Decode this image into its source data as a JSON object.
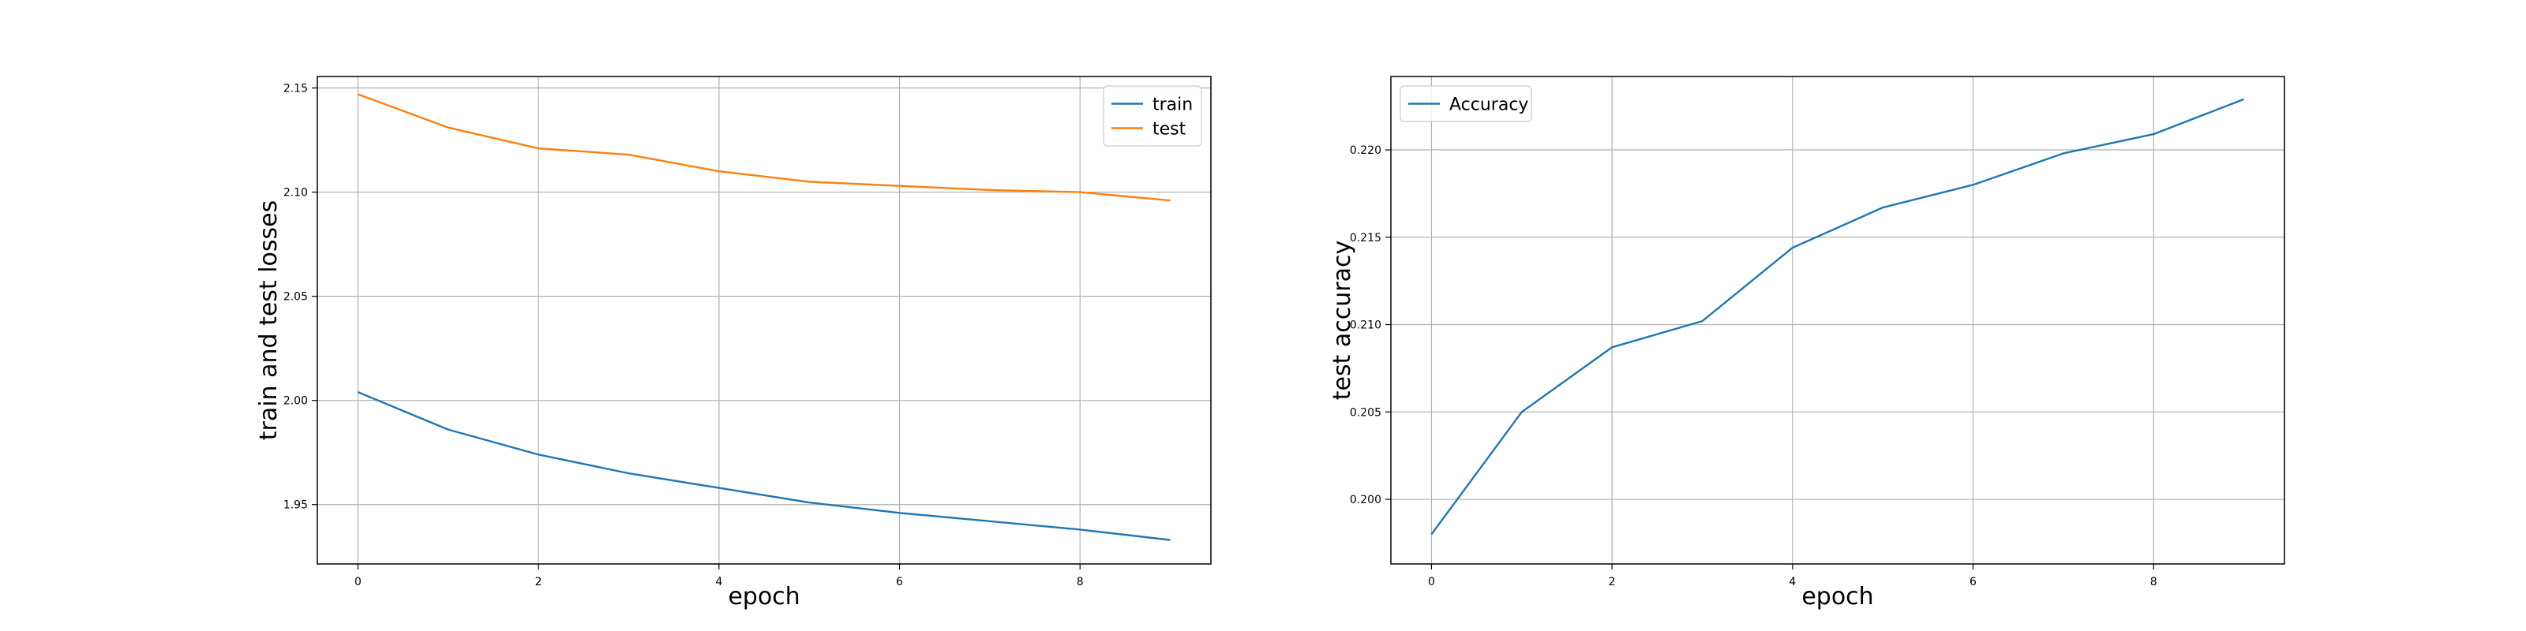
{
  "colors": {
    "series_1": "#1f77b4",
    "series_2": "#ff7f0e",
    "grid": "#b0b0b0",
    "axes": "#000000"
  },
  "chart_data": [
    {
      "type": "line",
      "title": "",
      "xlabel": "epoch",
      "ylabel": "train and test losses",
      "xlim": [
        -0.45,
        9.45
      ],
      "ylim": [
        1.9215,
        2.1555
      ],
      "xticks": [
        0,
        2,
        4,
        6,
        8
      ],
      "yticks": [
        1.95,
        2.0,
        2.05,
        2.1,
        2.15
      ],
      "xtick_labels": [
        "0",
        "2",
        "4",
        "6",
        "8"
      ],
      "ytick_labels": [
        "1.95",
        "2.00",
        "2.05",
        "2.10",
        "2.15"
      ],
      "grid": true,
      "legend_position": "upper right",
      "x": [
        0,
        1,
        2,
        3,
        4,
        5,
        6,
        7,
        8,
        9
      ],
      "series": [
        {
          "name": "train",
          "color": "#1f77b4",
          "values": [
            2.004,
            1.986,
            1.974,
            1.965,
            1.958,
            1.951,
            1.946,
            1.942,
            1.938,
            1.933
          ]
        },
        {
          "name": "test",
          "color": "#ff7f0e",
          "values": [
            2.147,
            2.131,
            2.121,
            2.118,
            2.11,
            2.105,
            2.103,
            2.101,
            2.1,
            2.096
          ]
        }
      ]
    },
    {
      "type": "line",
      "title": "",
      "xlabel": "epoch",
      "ylabel": "test accuracy",
      "xlim": [
        -0.45,
        9.45
      ],
      "ylim": [
        0.1963,
        0.2242
      ],
      "xticks": [
        0,
        2,
        4,
        6,
        8
      ],
      "yticks": [
        0.2,
        0.205,
        0.21,
        0.215,
        0.22
      ],
      "xtick_labels": [
        "0",
        "2",
        "4",
        "6",
        "8"
      ],
      "ytick_labels": [
        "0.200",
        "0.205",
        "0.210",
        "0.215",
        "0.220"
      ],
      "grid": true,
      "legend_position": "upper left",
      "x": [
        0,
        1,
        2,
        3,
        4,
        5,
        6,
        7,
        8,
        9
      ],
      "series": [
        {
          "name": "Accuracy",
          "color": "#1f77b4",
          "values": [
            0.198,
            0.205,
            0.2087,
            0.2102,
            0.2144,
            0.2167,
            0.218,
            0.2198,
            0.2209,
            0.2229
          ]
        }
      ]
    }
  ]
}
